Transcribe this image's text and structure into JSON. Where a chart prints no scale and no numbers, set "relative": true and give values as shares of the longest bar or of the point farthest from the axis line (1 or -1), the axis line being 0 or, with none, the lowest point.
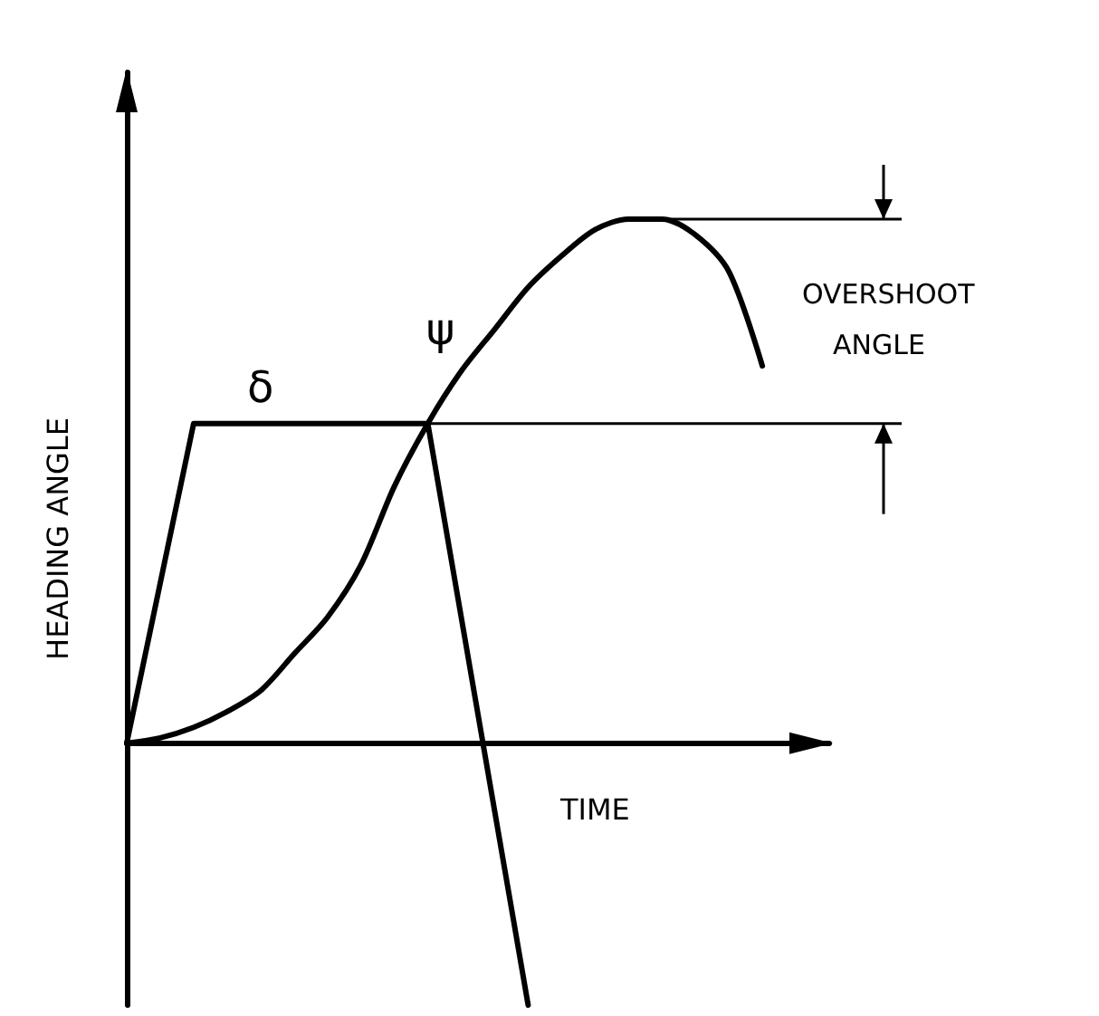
{
  "chart_data": {
    "type": "line",
    "relative": true,
    "xlabel": "TIME",
    "ylabel": "HEADING ANGLE",
    "legend": false,
    "grid": false,
    "marker": "none",
    "line_style": "solid",
    "annotations": [
      "OVERSHOOT ANGLE"
    ],
    "ref_lines": [
      {
        "axis": "y",
        "value": 1.0
      },
      {
        "axis": "y",
        "value": 0.61
      }
    ],
    "categories": [
      null,
      null,
      null,
      null,
      null,
      null,
      null,
      null,
      null,
      null,
      null,
      null,
      null,
      null,
      null,
      null,
      null,
      null,
      null,
      null,
      null,
      null
    ],
    "series": [
      {
        "name": "δ",
        "color": "#000000",
        "values": [
          0,
          0.305,
          0.61,
          0.61,
          0.61,
          0.61,
          0.61,
          0.61,
          0.61,
          0.61,
          0.24,
          -0.13,
          -0.5,
          null,
          null,
          null,
          null,
          null,
          null,
          null,
          null,
          null
        ]
      },
      {
        "name": "ψ",
        "color": "#000000",
        "values": [
          0,
          0.01,
          0.03,
          0.06,
          0.1,
          0.17,
          0.24,
          0.34,
          0.49,
          0.61,
          0.71,
          0.79,
          0.87,
          0.93,
          0.98,
          1.0,
          1.0,
          0.97,
          0.9,
          0.72,
          null,
          null
        ]
      }
    ]
  }
}
